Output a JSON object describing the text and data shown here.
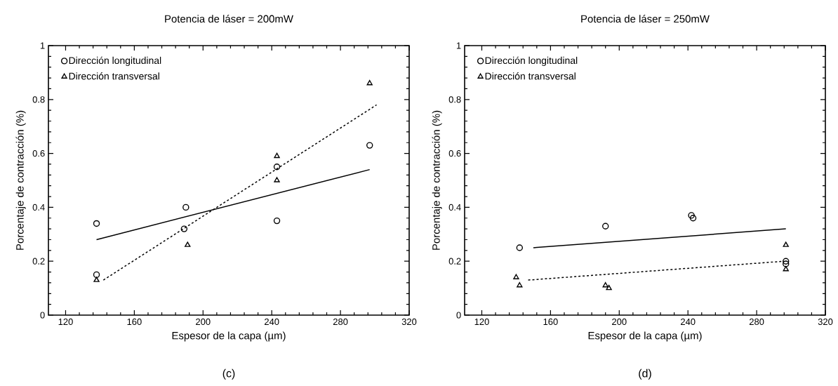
{
  "chart_data": [
    {
      "type": "scatter",
      "title": "Potencia de láser = 200mW",
      "xlabel": "Espesor de la capa (µm)",
      "ylabel": "Porcentaje de contracción (%)",
      "xlim": [
        110,
        320
      ],
      "xticks": [
        120,
        160,
        200,
        240,
        280,
        320
      ],
      "ylim": [
        0,
        1
      ],
      "yticks": [
        0,
        0.2,
        0.4,
        0.6,
        0.8,
        1
      ],
      "grid": false,
      "legend": "top left",
      "annotations": [
        "(c)"
      ],
      "series": [
        {
          "name": "Dirección longitudinal",
          "color": "#000000",
          "marker": "circle",
          "x": [
            138,
            138,
            190,
            189,
            243,
            243,
            297
          ],
          "values": [
            0.34,
            0.15,
            0.4,
            0.32,
            0.55,
            0.35,
            0.63
          ]
        },
        {
          "name": "Dirección transversal",
          "color": "#000000",
          "marker": "triangle",
          "x": [
            138,
            191,
            243,
            243,
            297
          ],
          "values": [
            0.13,
            0.26,
            0.59,
            0.5,
            0.86
          ]
        },
        {
          "type": "line",
          "color": "#000000",
          "line_style": "solid",
          "x": [
            138,
            297
          ],
          "values": [
            0.28,
            0.54
          ]
        },
        {
          "type": "line",
          "color": "#000000",
          "line_style": "dashed",
          "x": [
            142,
            301
          ],
          "values": [
            0.13,
            0.78
          ]
        }
      ]
    },
    {
      "type": "scatter",
      "title": "Potencia de láser = 250mW",
      "xlabel": "Espesor de la capa (µm)",
      "ylabel": "Porcentaje de contracción (%)",
      "xlim": [
        110,
        320
      ],
      "xticks": [
        120,
        160,
        200,
        240,
        280,
        320
      ],
      "ylim": [
        0,
        1
      ],
      "yticks": [
        0,
        0.2,
        0.4,
        0.6,
        0.8,
        1
      ],
      "grid": false,
      "legend": "top left",
      "annotations": [
        "(d)"
      ],
      "series": [
        {
          "name": "Dirección longitudinal",
          "color": "#000000",
          "marker": "circle",
          "x": [
            142,
            192,
            242,
            243,
            297,
            297
          ],
          "values": [
            0.25,
            0.33,
            0.37,
            0.36,
            0.2,
            0.19
          ]
        },
        {
          "name": "Dirección transversal",
          "color": "#000000",
          "marker": "triangle",
          "x": [
            140,
            142,
            192,
            194,
            297,
            297
          ],
          "values": [
            0.14,
            0.11,
            0.11,
            0.1,
            0.26,
            0.17
          ]
        },
        {
          "type": "line",
          "color": "#000000",
          "line_style": "solid",
          "x": [
            150,
            297
          ],
          "values": [
            0.25,
            0.32
          ]
        },
        {
          "type": "line",
          "color": "#000000",
          "line_style": "dashed",
          "x": [
            147,
            296
          ],
          "values": [
            0.13,
            0.2
          ]
        }
      ]
    }
  ]
}
